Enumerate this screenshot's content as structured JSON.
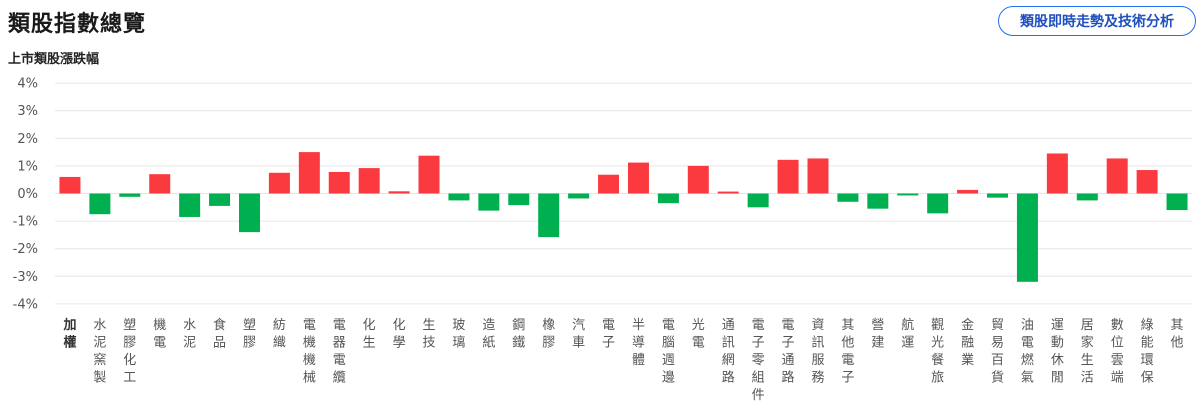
{
  "header": {
    "title": "類股指數總覽",
    "action_button": "類股即時走勢及技術分析"
  },
  "colors": {
    "up": "#fa3a3f",
    "down": "#00b050",
    "grid": "#e6e6e6"
  },
  "chart_data": {
    "type": "bar",
    "title": "上市類股漲跌幅",
    "ylim": [
      -4,
      4
    ],
    "yticks": [
      "4%",
      "3%",
      "2%",
      "1%",
      "0%",
      "-1%",
      "-2%",
      "-3%",
      "-4%"
    ],
    "ytick_values": [
      4,
      3,
      2,
      1,
      0,
      -1,
      -2,
      -3,
      -4
    ],
    "grid": true,
    "categories": [
      "加權",
      "水泥窯製",
      "塑膠化工",
      "機電",
      "水泥",
      "食品",
      "塑膠",
      "紡織",
      "電機機械",
      "電器電纜",
      "化生",
      "化學",
      "生技",
      "玻璃",
      "造紙",
      "鋼鐵",
      "橡膠",
      "汽車",
      "電子",
      "半導體",
      "電腦週邊",
      "光電",
      "通訊網路",
      "電子零組件",
      "電子通路",
      "資訊服務",
      "其他電子",
      "營建",
      "航運",
      "觀光餐旅",
      "金融業",
      "貿易百貨",
      "油電燃氣",
      "運動休閒",
      "居家生活",
      "數位雲端",
      "綠能環保",
      "其他"
    ],
    "values": [
      0.6,
      -0.75,
      -0.12,
      0.7,
      -0.85,
      -0.45,
      -1.4,
      0.75,
      1.5,
      0.78,
      0.92,
      0.08,
      1.37,
      -0.25,
      -0.62,
      -0.42,
      -1.58,
      -0.18,
      0.68,
      1.12,
      -0.35,
      1.0,
      0.07,
      -0.5,
      1.22,
      1.27,
      -0.3,
      -0.55,
      -0.07,
      -0.72,
      0.13,
      -0.15,
      -3.2,
      1.45,
      -0.25,
      1.27,
      0.85,
      -0.6
    ]
  }
}
